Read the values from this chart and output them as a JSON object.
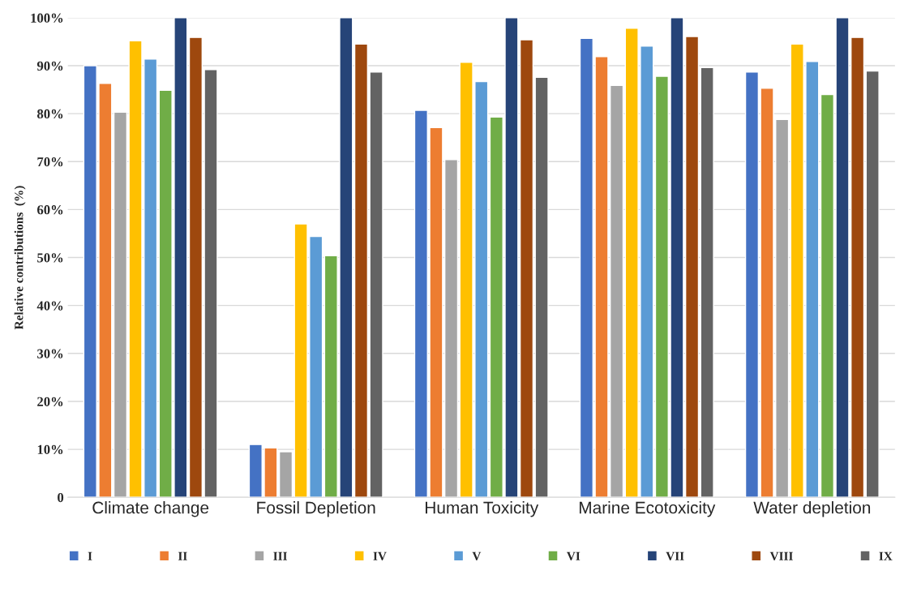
{
  "chart_data": {
    "type": "bar",
    "ylabel": "Relative contributions  (%)",
    "categories": [
      "Climate change",
      "Fossil Depletion",
      "Human Toxicity",
      "Marine Ecotoxicity",
      "Water depletion"
    ],
    "series": [
      {
        "name": "I",
        "color": "#4472c4",
        "values": [
          90,
          11,
          80.7,
          95.7,
          88.7
        ]
      },
      {
        "name": "II",
        "color": "#ed7d31",
        "values": [
          86.3,
          10.3,
          77.1,
          91.9,
          85.3
        ]
      },
      {
        "name": "III",
        "color": "#a5a5a5",
        "values": [
          80.3,
          9.5,
          70.4,
          85.9,
          78.8
        ]
      },
      {
        "name": "IV",
        "color": "#ffc000",
        "values": [
          95.2,
          57,
          90.7,
          97.8,
          94.5
        ]
      },
      {
        "name": "V",
        "color": "#5b9bd5",
        "values": [
          91.4,
          54.4,
          86.7,
          94.1,
          90.9
        ]
      },
      {
        "name": "VI",
        "color": "#70ad47",
        "values": [
          84.9,
          50.4,
          79.3,
          87.8,
          84
        ]
      },
      {
        "name": "VII",
        "color": "#264478",
        "values": [
          100,
          100,
          100,
          100,
          100
        ]
      },
      {
        "name": "VIII",
        "color": "#9e480e",
        "values": [
          95.9,
          94.5,
          95.4,
          96.1,
          95.9
        ]
      },
      {
        "name": "IX",
        "color": "#636363",
        "values": [
          89.2,
          88.7,
          87.6,
          89.6,
          88.9
        ]
      }
    ],
    "ylim": [
      0,
      100
    ],
    "yticks": [
      0,
      {
        "value": 10,
        "label": "10%"
      },
      {
        "value": 20,
        "label": "20%"
      },
      {
        "value": 30,
        "label": "30%"
      },
      {
        "value": 40,
        "label": "40%"
      },
      {
        "value": 50,
        "label": "50%"
      },
      {
        "value": 60,
        "label": "60%"
      },
      {
        "value": 70,
        "label": "70%"
      },
      {
        "value": 80,
        "label": "80%"
      },
      {
        "value": 90,
        "label": "90%"
      },
      {
        "value": 100,
        "label": "100%"
      }
    ],
    "grid": "y",
    "legend": "bottom"
  }
}
